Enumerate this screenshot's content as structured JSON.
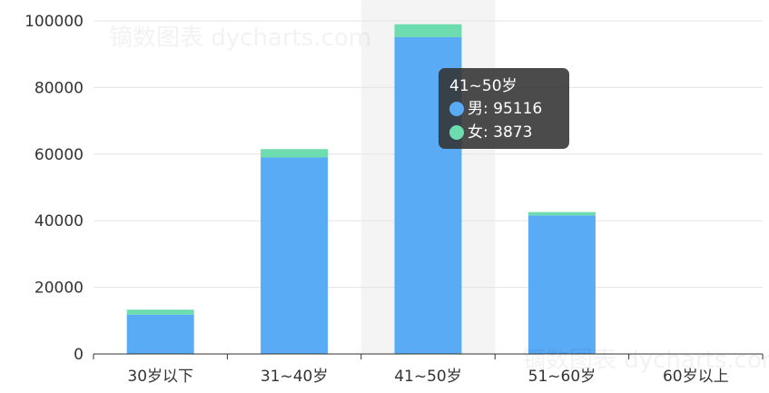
{
  "chart_data": {
    "type": "bar",
    "stacked": true,
    "categories": [
      "30岁以下",
      "31~40岁",
      "41~50岁",
      "51~60岁",
      "60岁以上"
    ],
    "series": [
      {
        "name": "男",
        "values": [
          11800,
          59000,
          95116,
          41600,
          0
        ],
        "color": "#5aabf5"
      },
      {
        "name": "女",
        "values": [
          1500,
          2500,
          3873,
          1000,
          0
        ],
        "color": "#6ddcaf"
      }
    ],
    "ylim": [
      0,
      100000
    ],
    "yticks": [
      "0",
      "20000",
      "40000",
      "60000",
      "80000",
      "100000"
    ],
    "grid": true,
    "highlighted_category": "41~50岁",
    "tooltip": {
      "title": "41~50岁",
      "rows": [
        {
          "label": "男: 95116",
          "color": "#5aabf5"
        },
        {
          "label": "女: 3873",
          "color": "#6ddcaf"
        }
      ]
    }
  },
  "watermark": "镝数图表 dycharts.com"
}
